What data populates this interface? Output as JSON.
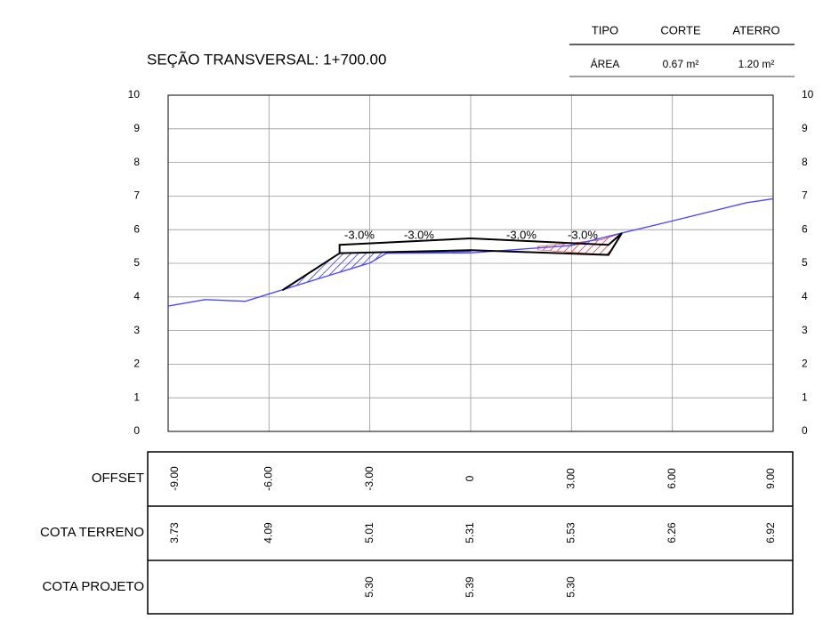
{
  "chart_data": {
    "type": "line",
    "title": "SEÇÃO TRANSVERSAL: 1+700.00",
    "summary": {
      "headers": [
        "TIPO",
        "CORTE",
        "ATERRO"
      ],
      "row": [
        "ÁREA",
        "0.67 m²",
        "1.20 m²"
      ]
    },
    "xlim": [
      -9,
      9
    ],
    "ylim": [
      0,
      10
    ],
    "xticks": [
      -9,
      -6,
      -3,
      0,
      3,
      6,
      9
    ],
    "yticks": [
      0,
      1,
      2,
      3,
      4,
      5,
      6,
      7,
      8,
      9,
      10
    ],
    "grid": true,
    "series": [
      {
        "color": "#4a4aff",
        "x": [
          -9,
          -7.9,
          -6.7,
          -6,
          -4.5,
          -3,
          -2.5,
          0,
          3,
          4.5,
          6,
          8.2,
          9
        ],
        "values": [
          3.73,
          3.92,
          3.87,
          4.09,
          4.55,
          5.01,
          5.3,
          5.31,
          5.53,
          5.9,
          6.26,
          6.8,
          6.92
        ]
      },
      {
        "color": "#000000",
        "x": [
          -5.6,
          -3.9,
          -3.9,
          0,
          4.1,
          4.5,
          4.1,
          0,
          -3.9
        ],
        "values": [
          4.2,
          5.3,
          5.55,
          5.74,
          5.55,
          5.9,
          5.25,
          5.39,
          5.3
        ]
      }
    ],
    "areas": [
      {
        "color": "#2222dd",
        "x": [
          -5.6,
          -3.9,
          0,
          -2.5,
          -3,
          -4.5
        ],
        "values": [
          4.2,
          5.3,
          5.35,
          5.3,
          5.01,
          4.55
        ]
      },
      {
        "color": "#dd2222",
        "x": [
          2,
          4.1,
          4.5,
          3.9,
          2
        ],
        "values": [
          5.4,
          5.25,
          5.9,
          5.7,
          5.5
        ]
      }
    ],
    "annotations": [
      "-3.0%",
      "-3.0%",
      "-3.0%",
      "-3.0%"
    ],
    "table": {
      "rows": [
        {
          "label": "OFFSET",
          "cells": [
            "-9.00",
            "-6.00",
            "-3.00",
            "0",
            "3.00",
            "6.00",
            "9.00"
          ]
        },
        {
          "label": "COTA TERRENO",
          "cells": [
            "3.73",
            "4.09",
            "5.01",
            "5.31",
            "5.53",
            "6.26",
            "6.92"
          ]
        },
        {
          "label": "COTA PROJETO",
          "cells": [
            null,
            null,
            "5.30",
            "5.39",
            "5.30",
            null,
            null
          ]
        }
      ]
    }
  }
}
